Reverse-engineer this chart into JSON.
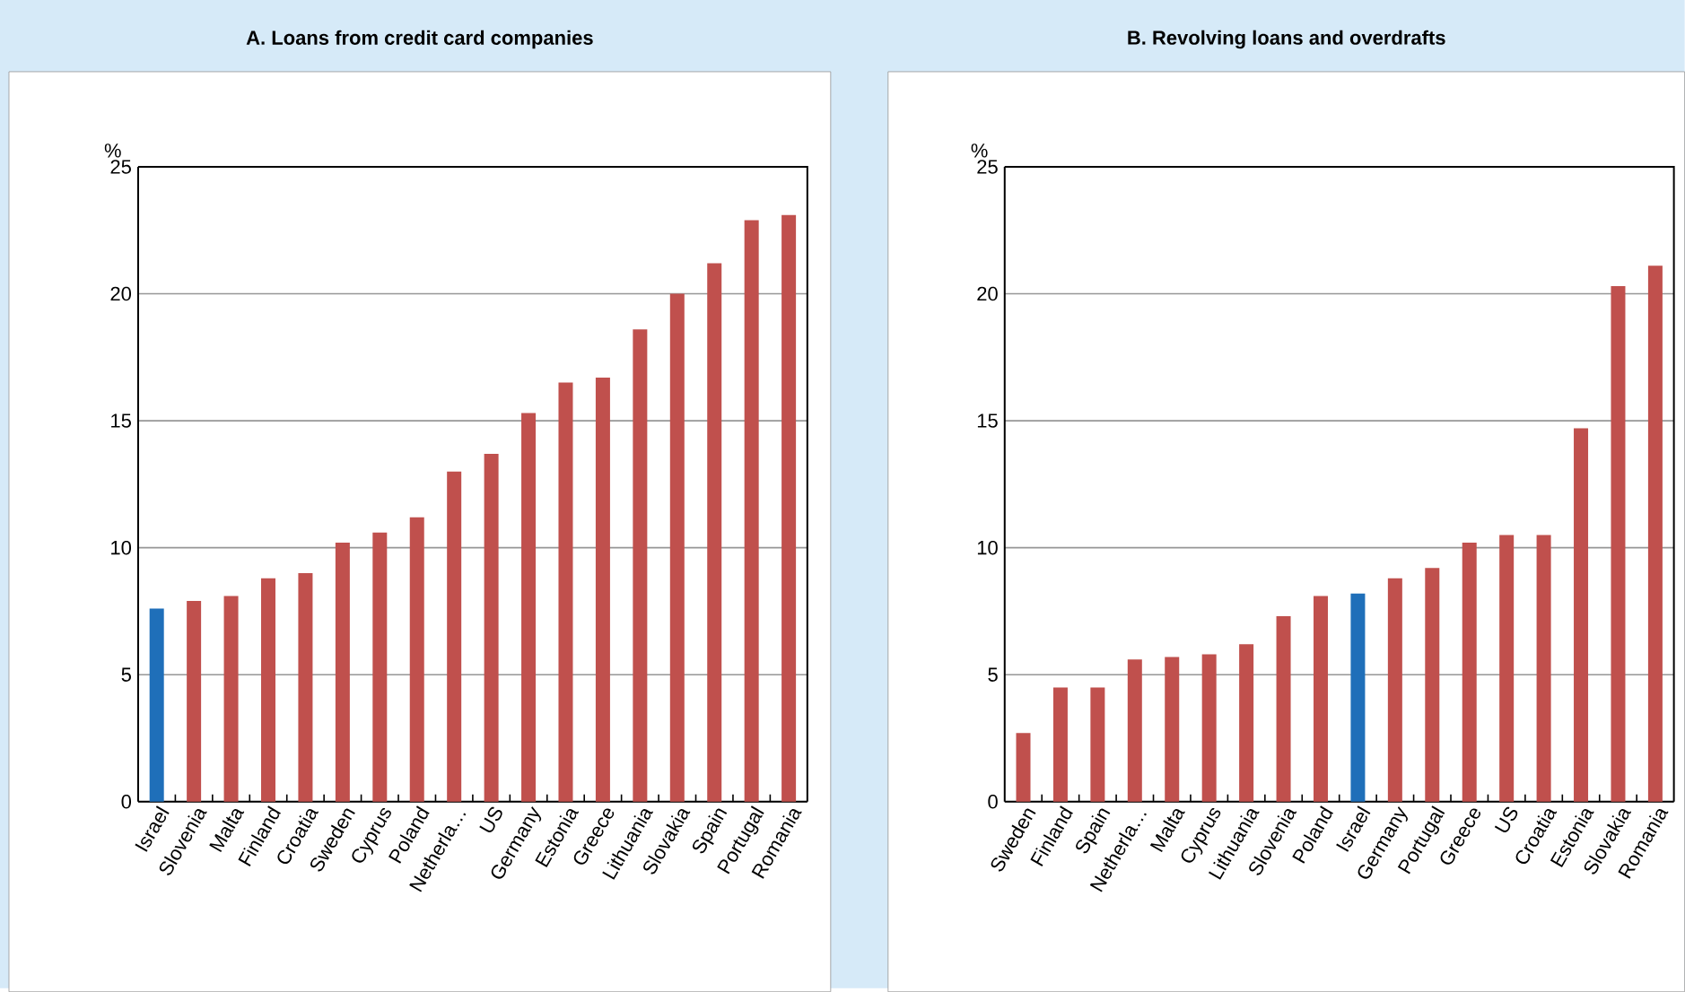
{
  "chart_data": [
    {
      "type": "bar",
      "title": "A. Loans from credit card companies",
      "ylabel": "%",
      "categories": [
        "Israel",
        "Slovenia",
        "Malta",
        "Finland",
        "Croatia",
        "Sweden",
        "Cyprus",
        "Poland",
        "Netherla…",
        "US",
        "Germany",
        "Estonia",
        "Greece",
        "Lithuania",
        "Slovakia",
        "Spain",
        "Portugal",
        "Romania"
      ],
      "values": [
        7.6,
        7.9,
        8.1,
        8.8,
        9.0,
        10.2,
        10.6,
        11.2,
        13.0,
        13.7,
        15.3,
        16.5,
        16.7,
        18.6,
        20.0,
        21.2,
        22.9,
        23.1
      ],
      "colors": [
        "#1f6fb9",
        "#c0504d",
        "#c0504d",
        "#c0504d",
        "#c0504d",
        "#c0504d",
        "#c0504d",
        "#c0504d",
        "#c0504d",
        "#c0504d",
        "#c0504d",
        "#c0504d",
        "#c0504d",
        "#c0504d",
        "#c0504d",
        "#c0504d",
        "#c0504d",
        "#c0504d"
      ],
      "ylim": [
        0,
        25
      ],
      "yticks": [
        0,
        5,
        10,
        15,
        20,
        25
      ],
      "grid": "y"
    },
    {
      "type": "bar",
      "title": "B. Revolving loans and overdrafts",
      "ylabel": "%",
      "categories": [
        "Sweden",
        "Finland",
        "Spain",
        "Netherla…",
        "Malta",
        "Cyprus",
        "Lithuania",
        "Slovenia",
        "Poland",
        "Israel",
        "Germany",
        "Portugal",
        "Greece",
        "US",
        "Croatia",
        "Estonia",
        "Slovakia",
        "Romania"
      ],
      "values": [
        2.7,
        4.5,
        4.5,
        5.6,
        5.7,
        5.8,
        6.2,
        7.3,
        8.1,
        8.2,
        8.8,
        9.2,
        10.2,
        10.5,
        10.5,
        14.7,
        20.3,
        21.1
      ],
      "colors": [
        "#c0504d",
        "#c0504d",
        "#c0504d",
        "#c0504d",
        "#c0504d",
        "#c0504d",
        "#c0504d",
        "#c0504d",
        "#c0504d",
        "#1f6fb9",
        "#c0504d",
        "#c0504d",
        "#c0504d",
        "#c0504d",
        "#c0504d",
        "#c0504d",
        "#c0504d",
        "#c0504d"
      ],
      "ylim": [
        0,
        25
      ],
      "yticks": [
        0,
        5,
        10,
        15,
        20,
        25
      ],
      "grid": "y"
    }
  ]
}
